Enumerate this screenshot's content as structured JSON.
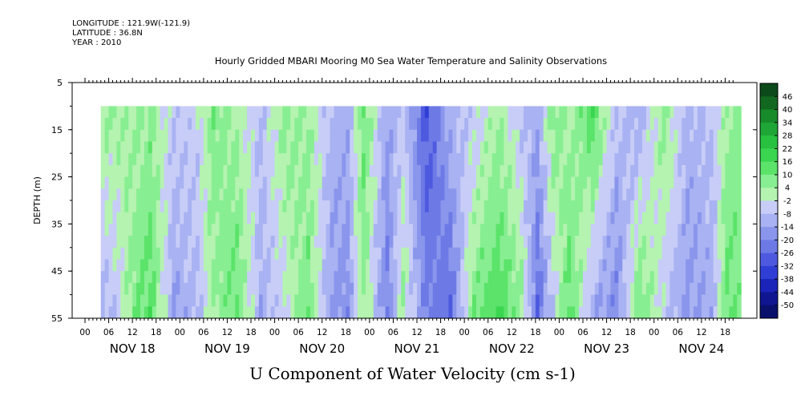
{
  "header": {
    "longitude": "LONGITUDE : 121.9W(-121.9)",
    "latitude": "LATITUDE : 36.8N",
    "year": "YEAR : 2010"
  },
  "chart_data": {
    "type": "heatmap",
    "title": "Hourly Gridded MBARI Mooring M0 Sea Water Temperature and Salinity Observations",
    "xlabel": "U Component of Water Velocity (cm s-1)",
    "ylabel": "DEPTH (m)",
    "y_ticks": [
      5,
      15,
      25,
      35,
      45,
      55
    ],
    "ylim": [
      55,
      5
    ],
    "x_hour_ticks": [
      "00",
      "06",
      "12",
      "18",
      "00",
      "06",
      "12",
      "18",
      "00",
      "06",
      "12",
      "18",
      "00",
      "06",
      "12",
      "18",
      "00",
      "06",
      "12",
      "18",
      "00",
      "06",
      "12",
      "18",
      "00",
      "06",
      "12",
      "18"
    ],
    "x_day_labels": [
      "NOV 18",
      "NOV 19",
      "NOV 20",
      "NOV 21",
      "NOV 22",
      "NOV 23",
      "NOV 24"
    ],
    "data_start_hour": 4,
    "data_end_hour": 166,
    "depth_range": [
      10,
      55
    ],
    "colorbar": {
      "labels": [
        "46",
        "40",
        "34",
        "28",
        "22",
        "16",
        "10",
        "4",
        "-2",
        "-8",
        "-14",
        "-20",
        "-26",
        "-32",
        "-38",
        "-44",
        "-50"
      ],
      "colors": [
        "#0d4a1a",
        "#12681f",
        "#178a2a",
        "#1ea636",
        "#28c140",
        "#3ad64f",
        "#5be36a",
        "#88ee92",
        "#b4f3b0",
        "#c7cdf7",
        "#a9b2f2",
        "#8a96ec",
        "#6d7ae6",
        "#4d5ae0",
        "#2f3fd6",
        "#1a24b8",
        "#0f1690",
        "#09106c"
      ]
    },
    "velocity_profiles": [
      {
        "hour": 6,
        "shallow": 4,
        "deep": -10
      },
      {
        "hour": 12,
        "shallow": 2,
        "deep": 8
      },
      {
        "hour": 16,
        "shallow": 6,
        "deep": 14
      },
      {
        "hour": 22,
        "shallow": -6,
        "deep": -14
      },
      {
        "hour": 28,
        "shallow": -4,
        "deep": -10
      },
      {
        "hour": 32,
        "shallow": 8,
        "deep": 4
      },
      {
        "hour": 38,
        "shallow": 2,
        "deep": 12
      },
      {
        "hour": 44,
        "shallow": -8,
        "deep": -12
      },
      {
        "hour": 50,
        "shallow": 6,
        "deep": -4
      },
      {
        "hour": 56,
        "shallow": 4,
        "deep": 10
      },
      {
        "hour": 62,
        "shallow": -10,
        "deep": -16
      },
      {
        "hour": 66,
        "shallow": -12,
        "deep": -18
      },
      {
        "hour": 70,
        "shallow": 10,
        "deep": 6
      },
      {
        "hour": 76,
        "shallow": -14,
        "deep": -22
      },
      {
        "hour": 80,
        "shallow": -6,
        "deep": 4
      },
      {
        "hour": 86,
        "shallow": -30,
        "deep": -20
      },
      {
        "hour": 92,
        "shallow": -10,
        "deep": -26
      },
      {
        "hour": 98,
        "shallow": -6,
        "deep": 10
      },
      {
        "hour": 104,
        "shallow": 4,
        "deep": 16
      },
      {
        "hour": 110,
        "shallow": -8,
        "deep": 6
      },
      {
        "hour": 114,
        "shallow": -12,
        "deep": -26
      },
      {
        "hour": 118,
        "shallow": 8,
        "deep": -8
      },
      {
        "hour": 122,
        "shallow": 2,
        "deep": 14
      },
      {
        "hour": 128,
        "shallow": 14,
        "deep": -14
      },
      {
        "hour": 134,
        "shallow": -8,
        "deep": -20
      },
      {
        "hour": 140,
        "shallow": -12,
        "deep": 12
      },
      {
        "hour": 146,
        "shallow": 6,
        "deep": -6
      },
      {
        "hour": 152,
        "shallow": -10,
        "deep": -16
      },
      {
        "hour": 158,
        "shallow": -8,
        "deep": -12
      },
      {
        "hour": 162,
        "shallow": 4,
        "deep": 12
      },
      {
        "hour": 166,
        "shallow": 8,
        "deep": 6
      }
    ]
  }
}
